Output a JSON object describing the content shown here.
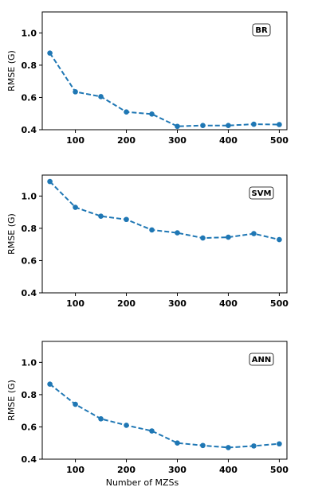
{
  "chart_data": [
    {
      "type": "line",
      "title": "",
      "legend": "BR",
      "legend_position": "top-right",
      "xlabel": "",
      "ylabel": "RMSE  (G)",
      "xlim": [
        35,
        515
      ],
      "ylim": [
        0.4,
        1.13
      ],
      "x_ticks": [
        100,
        200,
        300,
        400,
        500
      ],
      "y_ticks": [
        0.4,
        0.6,
        0.8,
        1.0
      ],
      "x_tick_labels": [
        "100",
        "200",
        "300",
        "400",
        "500"
      ],
      "y_tick_labels": [
        "0.4",
        "0.6",
        "0.8",
        "1.0"
      ],
      "grid": false,
      "color": "#1f77b4",
      "line_style": "dashed",
      "series": [
        {
          "x": [
            50,
            100,
            150,
            200,
            250,
            300,
            350,
            400,
            450,
            500
          ],
          "y": [
            0.875,
            0.635,
            0.605,
            0.51,
            0.497,
            0.421,
            0.426,
            0.426,
            0.434,
            0.432
          ]
        }
      ]
    },
    {
      "type": "line",
      "title": "",
      "legend": "SVM",
      "legend_position": "top-right",
      "xlabel": "",
      "ylabel": "RMSE  (G)",
      "xlim": [
        35,
        515
      ],
      "ylim": [
        0.4,
        1.13
      ],
      "x_ticks": [
        100,
        200,
        300,
        400,
        500
      ],
      "y_ticks": [
        0.4,
        0.6,
        0.8,
        1.0
      ],
      "x_tick_labels": [
        "100",
        "200",
        "300",
        "400",
        "500"
      ],
      "y_tick_labels": [
        "0.4",
        "0.6",
        "0.8",
        "1.0"
      ],
      "grid": false,
      "color": "#1f77b4",
      "line_style": "dashed",
      "series": [
        {
          "x": [
            50,
            100,
            150,
            200,
            250,
            300,
            350,
            400,
            450,
            500
          ],
          "y": [
            1.09,
            0.93,
            0.875,
            0.855,
            0.79,
            0.772,
            0.74,
            0.745,
            0.767,
            0.73
          ]
        }
      ]
    },
    {
      "type": "line",
      "title": "",
      "legend": "ANN",
      "legend_position": "top-right",
      "xlabel": "Number of MZSs",
      "ylabel": "RMSE (G)",
      "xlim": [
        35,
        515
      ],
      "ylim": [
        0.4,
        1.13
      ],
      "x_ticks": [
        100,
        200,
        300,
        400,
        500
      ],
      "y_ticks": [
        0.4,
        0.6,
        0.8,
        1.0
      ],
      "x_tick_labels": [
        "100",
        "200",
        "300",
        "400",
        "500"
      ],
      "y_tick_labels": [
        "0.4",
        "0.6",
        "0.8",
        "1.0"
      ],
      "grid": false,
      "color": "#1f77b4",
      "line_style": "dashed",
      "series": [
        {
          "x": [
            50,
            100,
            150,
            200,
            250,
            300,
            350,
            400,
            450,
            500
          ],
          "y": [
            0.865,
            0.74,
            0.65,
            0.61,
            0.575,
            0.5,
            0.485,
            0.472,
            0.482,
            0.495
          ]
        }
      ]
    }
  ]
}
